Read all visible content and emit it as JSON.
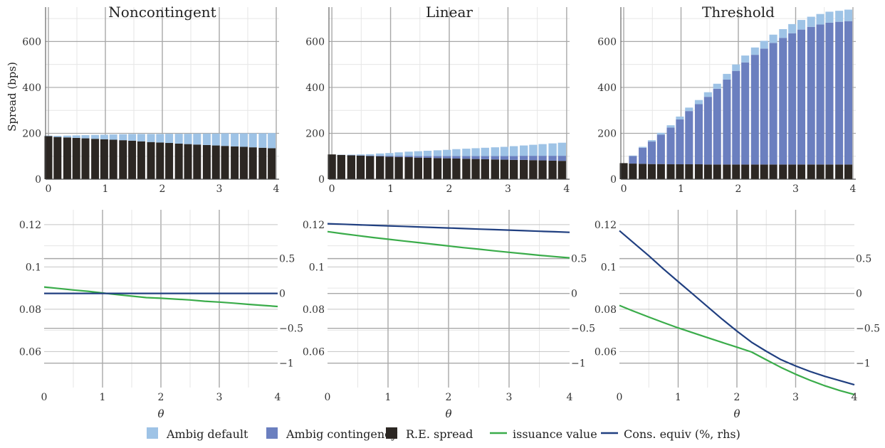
{
  "colors": {
    "ambig_default": "#9ec3e6",
    "ambig_contingency": "#6b7fbf",
    "re_spread": "#2c2723",
    "issuance": "#3aac4a",
    "cons_equiv": "#203f80",
    "grid_major": "#a8a8a8",
    "grid_minor": "#e6e6e6"
  },
  "legend": [
    {
      "label": "Ambig default",
      "kind": "box",
      "color_key": "ambig_default"
    },
    {
      "label": "Ambig contingency",
      "kind": "box",
      "color_key": "ambig_contingency"
    },
    {
      "label": "R.E. spread",
      "kind": "box",
      "color_key": "re_spread"
    },
    {
      "label": "issuance value",
      "kind": "line",
      "color_key": "issuance"
    },
    {
      "label": "Cons. equiv (%, rhs)",
      "kind": "line",
      "color_key": "cons_equiv"
    }
  ],
  "chart_data": [
    {
      "type": "bar",
      "stacked": true,
      "title": "Noncontingent",
      "xlabel": "",
      "ylabel": "Spread (bps)",
      "xlim": [
        -0.05,
        4.05
      ],
      "ylim": [
        0,
        750
      ],
      "xticks": [
        0,
        1,
        2,
        3,
        4
      ],
      "yticks": [
        0,
        200,
        400,
        600
      ],
      "x": [
        0,
        0.16,
        0.33,
        0.49,
        0.65,
        0.82,
        0.98,
        1.14,
        1.31,
        1.47,
        1.63,
        1.8,
        1.96,
        2.12,
        2.29,
        2.45,
        2.61,
        2.78,
        2.94,
        3.1,
        3.27,
        3.43,
        3.59,
        3.76,
        3.92
      ],
      "series": [
        {
          "name": "R.E. spread",
          "values": [
            188,
            184,
            182,
            180,
            178,
            176,
            174,
            172,
            170,
            168,
            165,
            162,
            160,
            158,
            155,
            153,
            151,
            149,
            147,
            145,
            143,
            141,
            139,
            137,
            135
          ]
        },
        {
          "name": "Ambig contingency",
          "values": [
            0,
            0,
            0,
            0,
            0,
            0,
            0,
            0,
            0,
            0,
            0,
            0,
            0,
            0,
            0,
            0,
            0,
            0,
            0,
            0,
            0,
            0,
            0,
            0,
            0
          ]
        },
        {
          "name": "Ambig default",
          "values": [
            2,
            5,
            8,
            11,
            14,
            17,
            20,
            23,
            26,
            29,
            32,
            35,
            37,
            40,
            43,
            45,
            48,
            50,
            52,
            55,
            57,
            59,
            61,
            63,
            66
          ]
        }
      ]
    },
    {
      "type": "bar",
      "stacked": true,
      "title": "Linear",
      "xlabel": "",
      "ylabel": "",
      "xlim": [
        -0.05,
        4.05
      ],
      "ylim": [
        0,
        750
      ],
      "xticks": [
        0,
        1,
        2,
        3,
        4
      ],
      "yticks": [
        0,
        200,
        400,
        600
      ],
      "x": [
        0,
        0.16,
        0.33,
        0.49,
        0.65,
        0.82,
        0.98,
        1.14,
        1.31,
        1.47,
        1.63,
        1.8,
        1.96,
        2.12,
        2.29,
        2.45,
        2.61,
        2.78,
        2.94,
        3.1,
        3.27,
        3.43,
        3.59,
        3.76,
        3.92
      ],
      "series": [
        {
          "name": "R.E. spread",
          "values": [
            108,
            106,
            104,
            103,
            101,
            100,
            98,
            97,
            96,
            94,
            93,
            92,
            91,
            90,
            89,
            88,
            87,
            86,
            85,
            84,
            84,
            83,
            82,
            81,
            80
          ]
        },
        {
          "name": "Ambig contingency",
          "values": [
            0,
            0,
            1,
            1,
            2,
            3,
            4,
            5,
            6,
            7,
            8,
            9,
            10,
            11,
            12,
            13,
            14,
            15,
            16,
            17,
            18,
            19,
            20,
            21,
            22
          ]
        },
        {
          "name": "Ambig default",
          "values": [
            0,
            1,
            2,
            4,
            6,
            9,
            12,
            15,
            18,
            21,
            23,
            25,
            27,
            30,
            32,
            34,
            36,
            38,
            40,
            43,
            45,
            48,
            51,
            54,
            57
          ]
        }
      ]
    },
    {
      "type": "bar",
      "stacked": true,
      "title": "Threshold",
      "xlabel": "",
      "ylabel": "",
      "xlim": [
        -0.05,
        4.05
      ],
      "ylim": [
        0,
        750
      ],
      "xticks": [
        0,
        1,
        2,
        3,
        4
      ],
      "yticks": [
        0,
        200,
        400,
        600
      ],
      "x": [
        0,
        0.16,
        0.33,
        0.49,
        0.65,
        0.82,
        0.98,
        1.14,
        1.31,
        1.47,
        1.63,
        1.8,
        1.96,
        2.12,
        2.29,
        2.45,
        2.61,
        2.78,
        2.94,
        3.1,
        3.27,
        3.43,
        3.59,
        3.76,
        3.92
      ],
      "series": [
        {
          "name": "R.E. spread",
          "values": [
            70,
            68,
            67,
            66,
            66,
            65,
            65,
            65,
            65,
            64,
            64,
            64,
            64,
            64,
            64,
            64,
            64,
            64,
            64,
            64,
            64,
            64,
            64,
            64,
            64
          ]
        },
        {
          "name": "Ambig contingency",
          "values": [
            0,
            33,
            70,
            98,
            128,
            160,
            196,
            232,
            262,
            295,
            330,
            370,
            408,
            445,
            478,
            505,
            530,
            552,
            572,
            588,
            600,
            610,
            618,
            622,
            625
          ]
        },
        {
          "name": "Ambig default",
          "values": [
            0,
            2,
            4,
            6,
            8,
            10,
            12,
            15,
            18,
            20,
            22,
            25,
            28,
            30,
            32,
            34,
            36,
            38,
            40,
            42,
            44,
            46,
            48,
            48,
            50
          ]
        }
      ]
    },
    {
      "type": "line",
      "title": "",
      "xlabel": "θ",
      "ylabel": "",
      "xlim": [
        0,
        4
      ],
      "ylim": [
        0.043,
        0.127
      ],
      "y2lim": [
        -1.35,
        1.2
      ],
      "xticks": [
        0,
        1,
        2,
        3,
        4
      ],
      "yticks": [
        0.06,
        0.08,
        0.1,
        0.12
      ],
      "y2ticks": [
        -1,
        -0.5,
        0,
        0.5
      ],
      "y2tick_labels": [
        "−1",
        "−0.5",
        "0",
        "0.5"
      ],
      "x": [
        0,
        0.25,
        0.5,
        0.75,
        1,
        1.25,
        1.5,
        1.75,
        2,
        2.25,
        2.5,
        2.75,
        3,
        3.25,
        3.5,
        3.75,
        4
      ],
      "series": [
        {
          "name": "issuance value",
          "axis": "left",
          "values": [
            0.0905,
            0.0898,
            0.0891,
            0.0885,
            0.0877,
            0.0869,
            0.0862,
            0.0855,
            0.0852,
            0.0848,
            0.0844,
            0.0838,
            0.0834,
            0.0829,
            0.0823,
            0.0818,
            0.0813
          ]
        },
        {
          "name": "Cons. equiv (%, rhs)",
          "axis": "right",
          "values": [
            0,
            0,
            0,
            0,
            0,
            0,
            0,
            0,
            0,
            0,
            0,
            0,
            0,
            0,
            0,
            0,
            0
          ]
        }
      ]
    },
    {
      "type": "line",
      "title": "",
      "xlabel": "θ",
      "ylabel": "",
      "xlim": [
        0,
        4
      ],
      "ylim": [
        0.043,
        0.127
      ],
      "y2lim": [
        -1.35,
        1.2
      ],
      "xticks": [
        0,
        1,
        2,
        3,
        4
      ],
      "yticks": [
        0.06,
        0.08,
        0.1,
        0.12
      ],
      "y2ticks": [
        -1,
        -0.5,
        0,
        0.5
      ],
      "y2tick_labels": [
        "−1",
        "−0.5",
        "0",
        "0.5"
      ],
      "x": [
        0,
        0.25,
        0.5,
        0.75,
        1,
        1.25,
        1.5,
        1.75,
        2,
        2.25,
        2.5,
        2.75,
        3,
        3.25,
        3.5,
        3.75,
        4
      ],
      "series": [
        {
          "name": "issuance value",
          "axis": "left",
          "values": [
            0.1167,
            0.1157,
            0.1148,
            0.1139,
            0.1131,
            0.1123,
            0.1115,
            0.1107,
            0.1099,
            0.1091,
            0.1084,
            0.1076,
            0.1069,
            0.1062,
            0.1055,
            0.1049,
            0.1043
          ]
        },
        {
          "name": "Cons. equiv (%, rhs)",
          "axis": "right",
          "values": [
            1.0,
            0.993,
            0.985,
            0.977,
            0.969,
            0.962,
            0.954,
            0.946,
            0.939,
            0.931,
            0.923,
            0.915,
            0.908,
            0.9,
            0.892,
            0.885,
            0.877
          ]
        }
      ]
    },
    {
      "type": "line",
      "title": "",
      "xlabel": "θ",
      "ylabel": "",
      "xlim": [
        0,
        4
      ],
      "ylim": [
        0.043,
        0.127
      ],
      "y2lim": [
        -1.35,
        1.2
      ],
      "xticks": [
        0,
        1,
        2,
        3,
        4
      ],
      "yticks": [
        0.06,
        0.08,
        0.1,
        0.12
      ],
      "y2ticks": [
        -1,
        -0.5,
        0,
        0.5
      ],
      "y2tick_labels": [
        "−1",
        "−0.5",
        "0",
        "0.5"
      ],
      "x": [
        0,
        0.25,
        0.5,
        0.75,
        1,
        1.25,
        1.5,
        1.75,
        2,
        2.25,
        2.5,
        2.75,
        3,
        3.25,
        3.5,
        3.75,
        4
      ],
      "series": [
        {
          "name": "issuance value",
          "axis": "left",
          "values": [
            0.0818,
            0.079,
            0.0763,
            0.0737,
            0.0712,
            0.0689,
            0.0666,
            0.0643,
            0.0621,
            0.0598,
            0.0561,
            0.0525,
            0.0493,
            0.0464,
            0.0438,
            0.0416,
            0.0397
          ]
        },
        {
          "name": "Cons. equiv (%, rhs)",
          "axis": "right",
          "values": [
            0.9,
            0.72,
            0.54,
            0.35,
            0.17,
            -0.01,
            -0.19,
            -0.37,
            -0.54,
            -0.7,
            -0.83,
            -0.95,
            -1.04,
            -1.12,
            -1.19,
            -1.25,
            -1.31
          ]
        }
      ]
    }
  ]
}
